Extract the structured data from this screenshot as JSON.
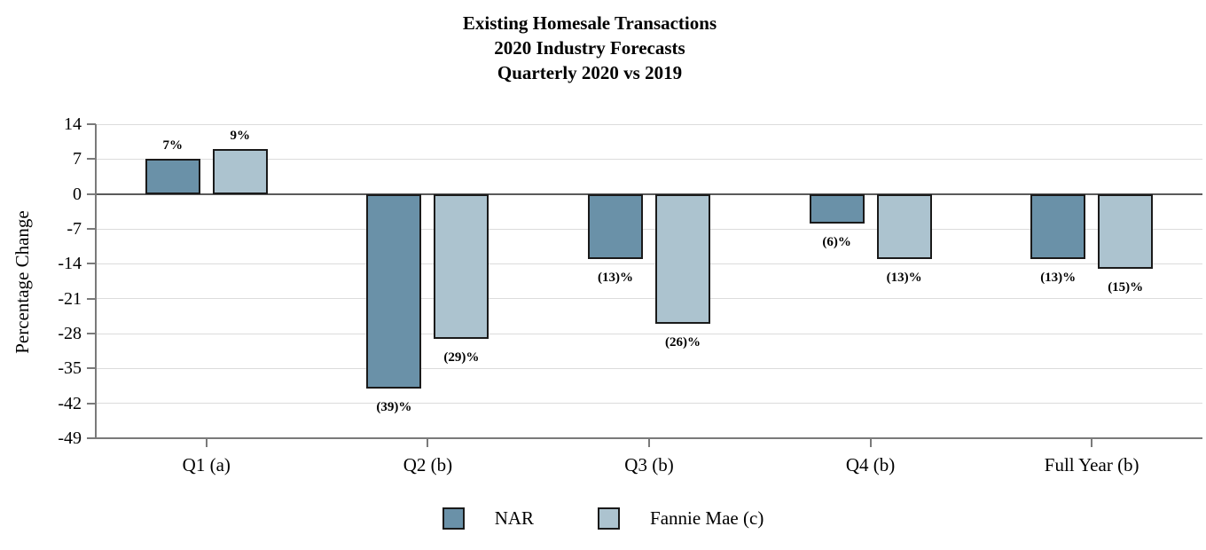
{
  "page": {
    "background": "#ffffff"
  },
  "chart_data": {
    "type": "bar",
    "title_lines": [
      "Existing Homesale Transactions",
      "2020 Industry Forecasts",
      "Quarterly 2020 vs 2019"
    ],
    "ylabel": "Percentage Change",
    "categories": [
      "Q1 (a)",
      "Q2 (b)",
      "Q3 (b)",
      "Q4 (b)",
      "Full Year (b)"
    ],
    "series": [
      {
        "name": "NAR",
        "color": "#6a91a8",
        "values": [
          7,
          -39,
          -13,
          -6,
          -13
        ],
        "value_labels": [
          "7%",
          "(39)%",
          "(13)%",
          "(6)%",
          "(13)%"
        ]
      },
      {
        "name": "Fannie Mae (c)",
        "color": "#acc3cf",
        "values": [
          9,
          -29,
          -26,
          -13,
          -15
        ],
        "value_labels": [
          "9%",
          "(29)%",
          "(26)%",
          "(13)%",
          "(15)%"
        ]
      }
    ],
    "yticks": [
      14,
      7,
      0,
      -7,
      -14,
      -21,
      -28,
      -35,
      -42,
      -49
    ],
    "ylim": [
      -49,
      14
    ],
    "grid": true,
    "legend_position": "bottom",
    "colors": {
      "bar_border": "#1a1a1a",
      "gridline": "#dcdcdc",
      "axis_line": "#7a7a7a",
      "zero_line": "#5a5a5a",
      "text": "#000000"
    }
  }
}
